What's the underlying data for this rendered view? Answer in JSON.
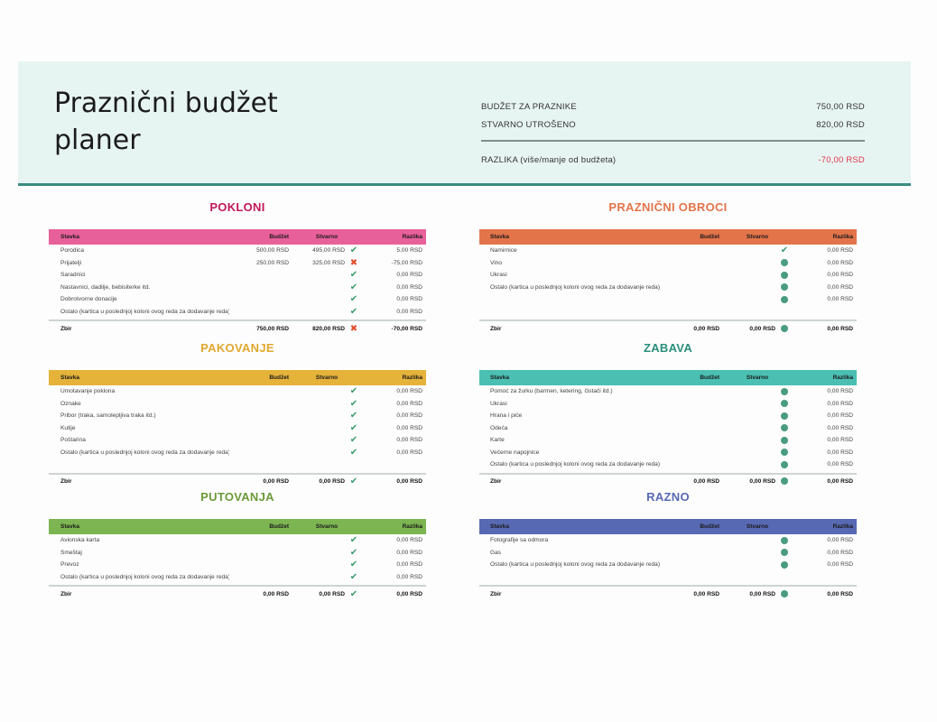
{
  "header": {
    "title": "Praznični budžet planer",
    "summary": {
      "budget_label": "BUDŽET ZA PRAZNIKE",
      "budget_value": "750,00 RSD",
      "spent_label": "STVARNO UTROŠENO",
      "spent_value": "820,00 RSD",
      "diff_label": "RAZLIKA (više/manje od budžeta)",
      "diff_value": "-70,00 RSD"
    }
  },
  "columns": {
    "item": "Stavka",
    "budget": "Budžet",
    "actual": "Stvarno",
    "diff": "Razlika"
  },
  "total_label": "Zbir",
  "colors": {
    "pokloni": "#e8609a",
    "obroci": "#e3744a",
    "pakovanje": "#e5b23a",
    "zabava": "#4bbfb2",
    "putovanja": "#7cb552",
    "razno": "#5869b3",
    "negative": "#e0344b",
    "check": "#3a9a6e",
    "cross": "#e34c2a",
    "dot": "#4a9c7e",
    "header_bg": "#e7f5f2",
    "header_border": "#3b8c80"
  },
  "sections": {
    "pokloni": {
      "title": "POKLONI",
      "title_color": "#c2185b",
      "rows": [
        {
          "item": "Porodica",
          "budget": "500,00 RSD",
          "actual": "495,00 RSD",
          "status": "check",
          "diff": "5,00 RSD"
        },
        {
          "item": "Prijatelji",
          "budget": "250,00 RSD",
          "actual": "325,00 RSD",
          "status": "cross",
          "diff": "-75,00 RSD"
        },
        {
          "item": "Saradnici",
          "budget": "",
          "actual": "",
          "status": "check",
          "diff": "0,00 RSD"
        },
        {
          "item": "Nastavnici, dadilje, bebisiterke itd.",
          "budget": "",
          "actual": "",
          "status": "check",
          "diff": "0,00 RSD"
        },
        {
          "item": "Dobrotvorne donacije",
          "budget": "",
          "actual": "",
          "status": "check",
          "diff": "0,00 RSD"
        },
        {
          "item": "Ostalo (kartica u poslednjoj koloni ovog reda za dodavanje reda)",
          "budget": "",
          "actual": "",
          "status": "check",
          "diff": "0,00 RSD"
        }
      ],
      "total": {
        "budget": "750,00 RSD",
        "actual": "820,00 RSD",
        "status": "cross",
        "diff": "-70,00 RSD"
      }
    },
    "obroci": {
      "title": "PRAZNIČNI OBROCI",
      "title_color": "#e3744a",
      "rows": [
        {
          "item": "Namirnice",
          "budget": "",
          "actual": "",
          "status": "check",
          "diff": "0,00 RSD"
        },
        {
          "item": "Vino",
          "budget": "",
          "actual": "",
          "status": "dot",
          "diff": "0,00 RSD"
        },
        {
          "item": "Ukrasi",
          "budget": "",
          "actual": "",
          "status": "dot",
          "diff": "0,00 RSD"
        },
        {
          "item": "Ostalo (kartica u poslednjoj koloni ovog reda za dodavanje reda)",
          "budget": "",
          "actual": "",
          "status": "dot",
          "diff": "0,00 RSD"
        },
        {
          "item": "",
          "budget": "",
          "actual": "",
          "status": "dot",
          "diff": "0,00 RSD"
        }
      ],
      "total": {
        "budget": "0,00 RSD",
        "actual": "0,00 RSD",
        "status": "dot",
        "diff": "0,00 RSD"
      }
    },
    "pakovanje": {
      "title": "PAKOVANJE",
      "title_color": "#e0a82e",
      "rows": [
        {
          "item": "Umotavanje poklona",
          "budget": "",
          "actual": "",
          "status": "check",
          "diff": "0,00 RSD"
        },
        {
          "item": "Oznake",
          "budget": "",
          "actual": "",
          "status": "check",
          "diff": "0,00 RSD"
        },
        {
          "item": "Pribor (traka, samolepljiva traka itd.)",
          "budget": "",
          "actual": "",
          "status": "check",
          "diff": "0,00 RSD"
        },
        {
          "item": "Kutije",
          "budget": "",
          "actual": "",
          "status": "check",
          "diff": "0,00 RSD"
        },
        {
          "item": "Poštarina",
          "budget": "",
          "actual": "",
          "status": "check",
          "diff": "0,00 RSD"
        },
        {
          "item": "Ostalo (kartica u poslednjoj koloni ovog reda za dodavanje reda)",
          "budget": "",
          "actual": "",
          "status": "check",
          "diff": "0,00 RSD"
        }
      ],
      "total": {
        "budget": "0,00 RSD",
        "actual": "0,00 RSD",
        "status": "check",
        "diff": "0,00 RSD"
      }
    },
    "zabava": {
      "title": "ZABAVA",
      "title_color": "#2a8f7c",
      "rows": [
        {
          "item": "Pomoć za žurku (barmen, ketering, čistači itd.)",
          "budget": "",
          "actual": "",
          "status": "dot",
          "diff": "0,00 RSD"
        },
        {
          "item": "Ukrasi",
          "budget": "",
          "actual": "",
          "status": "dot",
          "diff": "0,00 RSD"
        },
        {
          "item": "Hrana i piće",
          "budget": "",
          "actual": "",
          "status": "dot",
          "diff": "0,00 RSD"
        },
        {
          "item": "Odeća",
          "budget": "",
          "actual": "",
          "status": "dot",
          "diff": "0,00 RSD"
        },
        {
          "item": "Karte",
          "budget": "",
          "actual": "",
          "status": "dot",
          "diff": "0,00 RSD"
        },
        {
          "item": "Večerne napojnice",
          "budget": "",
          "actual": "",
          "status": "dot",
          "diff": "0,00 RSD"
        },
        {
          "item": "Ostalo (kartica u poslednjoj koloni ovog reda za dodavanje reda)",
          "budget": "",
          "actual": "",
          "status": "dot",
          "diff": "0,00 RSD"
        }
      ],
      "total": {
        "budget": "0,00 RSD",
        "actual": "0,00 RSD",
        "status": "dot",
        "diff": "0,00 RSD"
      }
    },
    "putovanja": {
      "title": "PUTOVANJA",
      "title_color": "#6b9a3a",
      "rows": [
        {
          "item": "Avionska karta",
          "budget": "",
          "actual": "",
          "status": "check",
          "diff": "0,00 RSD"
        },
        {
          "item": "Smeštaj",
          "budget": "",
          "actual": "",
          "status": "check",
          "diff": "0,00 RSD"
        },
        {
          "item": "Prevoz",
          "budget": "",
          "actual": "",
          "status": "check",
          "diff": "0,00 RSD"
        },
        {
          "item": "Ostalo (kartica u poslednjoj koloni ovog reda za dodavanje reda)",
          "budget": "",
          "actual": "",
          "status": "check",
          "diff": "0,00 RSD"
        }
      ],
      "total": {
        "budget": "0,00 RSD",
        "actual": "0,00 RSD",
        "status": "check",
        "diff": "0,00 RSD"
      }
    },
    "razno": {
      "title": "RAZNO",
      "title_color": "#5869b3",
      "rows": [
        {
          "item": "Fotografije sa odmora",
          "budget": "",
          "actual": "",
          "status": "dot",
          "diff": "0,00 RSD"
        },
        {
          "item": "Gas",
          "budget": "",
          "actual": "",
          "status": "dot",
          "diff": "0,00 RSD"
        },
        {
          "item": "Ostalo (kartica u poslednjoj koloni ovog reda za dodavanje reda)",
          "budget": "",
          "actual": "",
          "status": "dot",
          "diff": "0,00 RSD"
        }
      ],
      "total": {
        "budget": "0,00 RSD",
        "actual": "0,00 RSD",
        "status": "dot",
        "diff": "0,00 RSD"
      }
    }
  }
}
